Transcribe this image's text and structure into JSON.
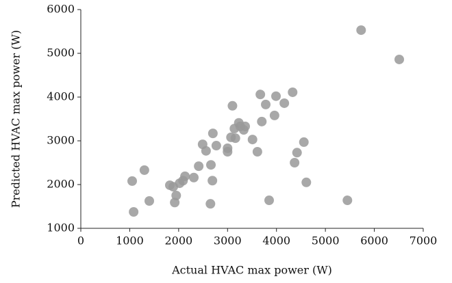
{
  "chart_data": {
    "type": "scatter",
    "xlabel": "Actual HVAC max power (W)",
    "ylabel": "Predicted HVAC max power (W)",
    "color": "#999999",
    "x": [
      1050,
      1080,
      1300,
      1400,
      1820,
      1890,
      1950,
      1920,
      2020,
      2090,
      2130,
      2310,
      2410,
      2490,
      2560,
      2650,
      2660,
      2690,
      2700,
      2770,
      3100,
      3000,
      3000,
      3070,
      3140,
      3160,
      3230,
      3260,
      3330,
      3360,
      3510,
      3610,
      3670,
      3700,
      3780,
      3850,
      3960,
      3990,
      4160,
      4330,
      4370,
      4420,
      4560,
      4610,
      5450,
      5730,
      6510
    ],
    "values": [
      2080,
      1375,
      2330,
      1625,
      1985,
      1950,
      1750,
      1590,
      2030,
      2090,
      2190,
      2160,
      2420,
      2920,
      2770,
      1560,
      2450,
      2090,
      3170,
      2890,
      3800,
      2830,
      2750,
      3080,
      3280,
      3060,
      3410,
      3330,
      3250,
      3330,
      3030,
      2750,
      4060,
      3440,
      3830,
      1640,
      3580,
      4020,
      3860,
      4110,
      2500,
      2730,
      2970,
      2050,
      1640,
      5530,
      4860
    ],
    "xlim": [
      0,
      7000
    ],
    "xticks": [
      0,
      1000,
      2000,
      3000,
      4000,
      5000,
      6000,
      7000
    ],
    "ylim": [
      1000,
      6000
    ],
    "yticks": [
      1000,
      2000,
      3000,
      4000,
      5000,
      6000
    ]
  }
}
